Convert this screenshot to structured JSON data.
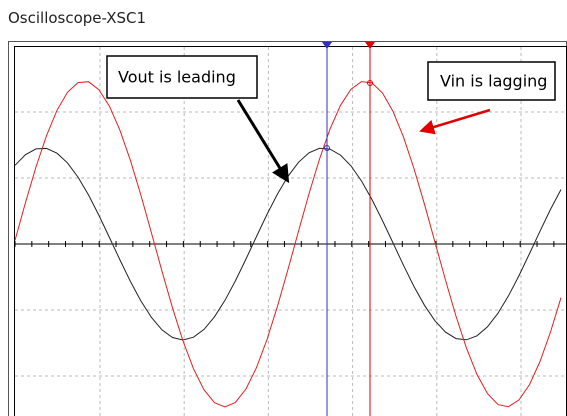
{
  "window": {
    "title": "Oscilloscope-XSC1"
  },
  "annotations": [
    {
      "text": "Vout is leading"
    },
    {
      "text": "Vin is lagging"
    }
  ]
}
